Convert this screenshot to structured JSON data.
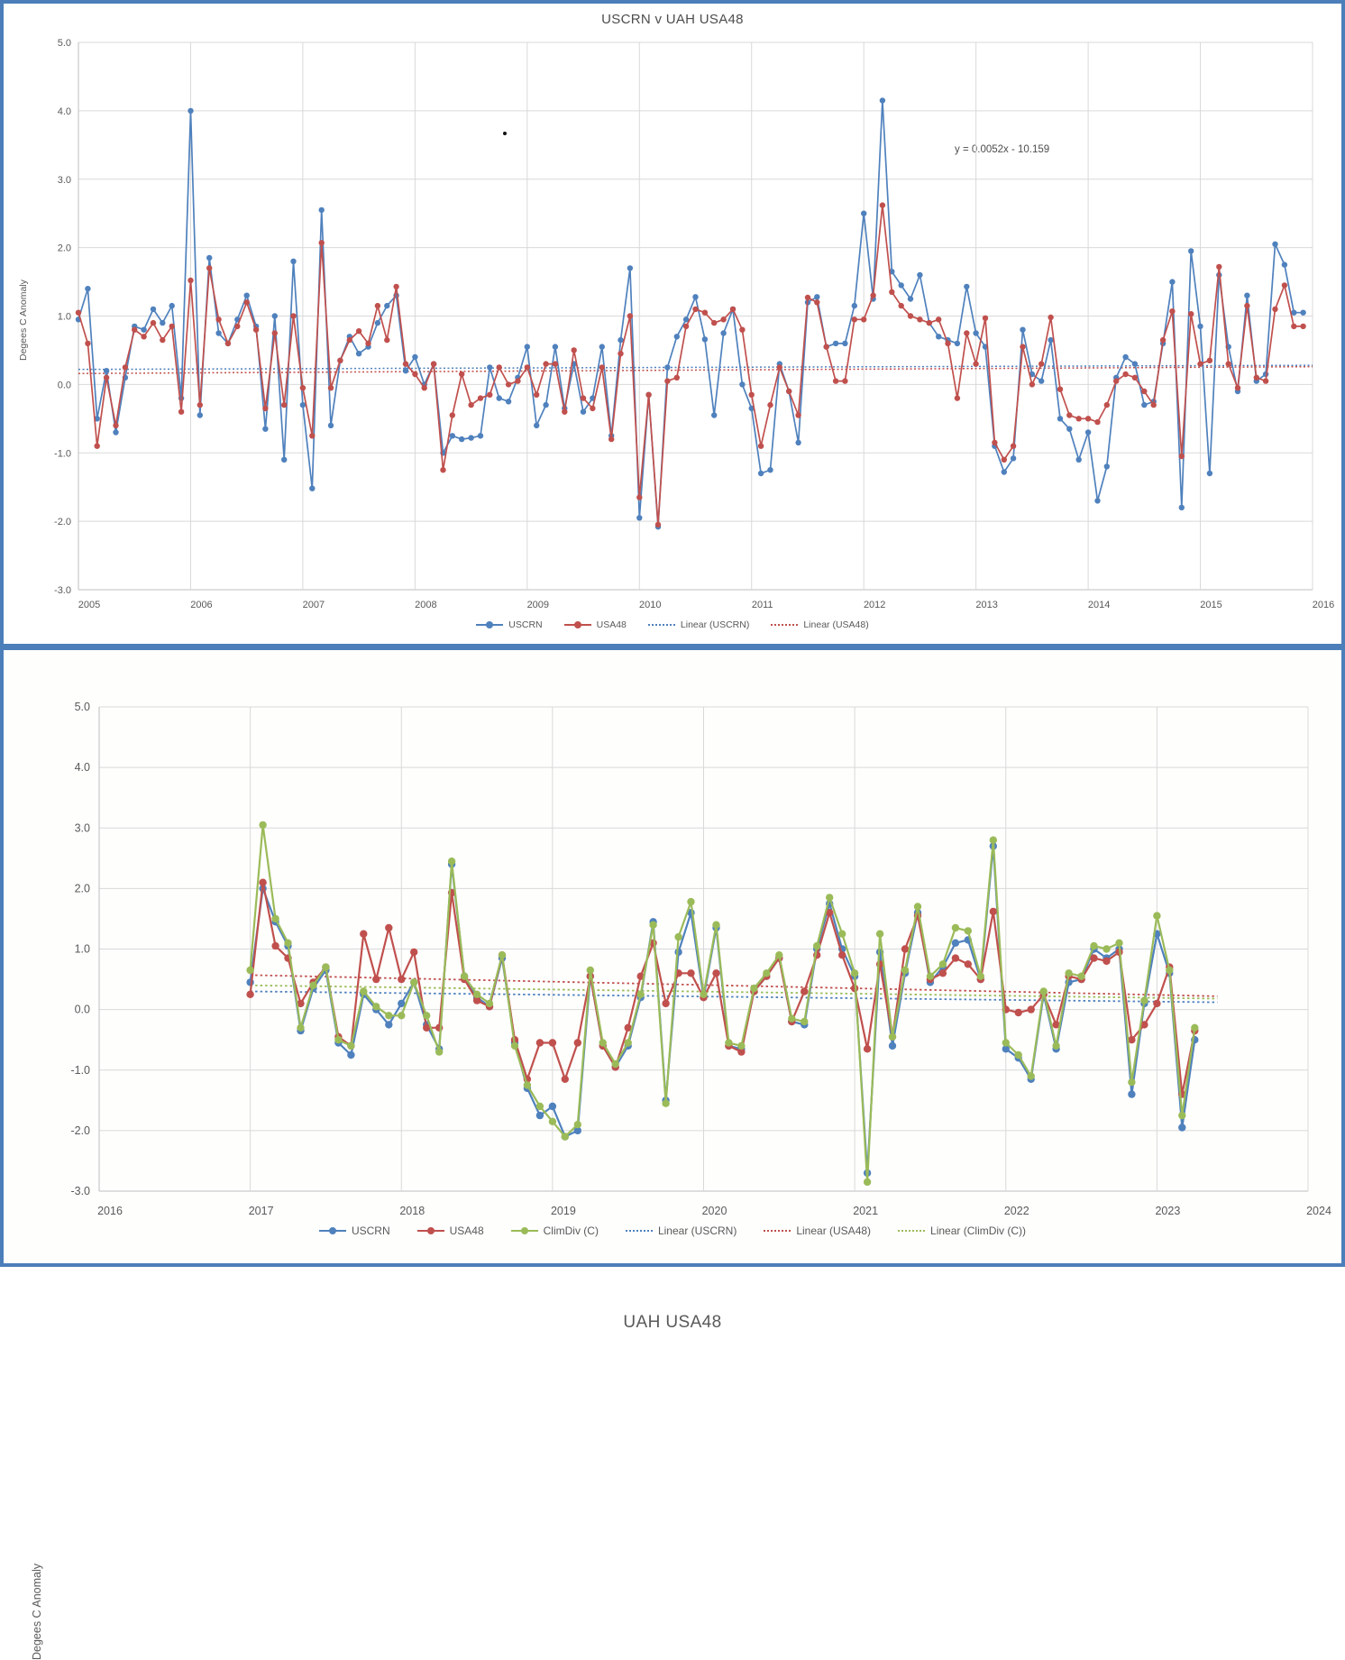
{
  "frame": {
    "border_color": "#4C7EBA"
  },
  "chart_data": [
    {
      "type": "line",
      "title": "USCRN v UAH USA48",
      "ylabel": "Degees  C Anomaly",
      "annotation": "y = 0.0052x - 10.159",
      "xlim": [
        2005,
        2016
      ],
      "ylim": [
        -3,
        5
      ],
      "x_ticks": [
        2005,
        2006,
        2007,
        2008,
        2009,
        2010,
        2011,
        2012,
        2013,
        2014,
        2015,
        2016
      ],
      "y_ticks": [
        5,
        4,
        3,
        2,
        1,
        0,
        -1,
        -2,
        -3
      ],
      "y_tick_labels": [
        "5.0",
        "4.0",
        "3.0",
        "2.0",
        "1.0",
        "0.0",
        "-1.0",
        "-2.0",
        "-3.0"
      ],
      "x_start": 2005.0,
      "points_per_year": 12,
      "grid": true,
      "legend_position": "bottom",
      "series": [
        {
          "name": "USCRN",
          "color": "#4F81BD",
          "values": [
            0.95,
            1.4,
            -0.5,
            0.2,
            -0.7,
            0.1,
            0.85,
            0.8,
            1.1,
            0.9,
            1.15,
            -0.2,
            4.0,
            -0.45,
            1.85,
            0.75,
            0.6,
            0.95,
            1.3,
            0.85,
            -0.65,
            1.0,
            -1.1,
            1.8,
            -0.3,
            -1.52,
            2.55,
            -0.6,
            0.35,
            0.7,
            0.45,
            0.55,
            0.9,
            1.15,
            1.3,
            0.2,
            0.4,
            0.0,
            0.3,
            -1.0,
            -0.75,
            -0.8,
            -0.78,
            -0.75,
            0.25,
            -0.2,
            -0.25,
            0.1,
            0.55,
            -0.6,
            -0.3,
            0.55,
            -0.35,
            0.3,
            -0.4,
            -0.2,
            0.55,
            -0.75,
            0.65,
            1.7,
            -1.95,
            -0.15,
            -2.08,
            0.25,
            0.7,
            0.95,
            1.28,
            0.66,
            -0.45,
            0.75,
            1.1,
            0.0,
            -0.35,
            -1.3,
            -1.25,
            0.3,
            -0.1,
            -0.85,
            1.2,
            1.28,
            0.55,
            0.6,
            0.6,
            1.15,
            2.5,
            1.25,
            4.15,
            1.65,
            1.45,
            1.25,
            1.6,
            0.9,
            0.7,
            0.65,
            0.6,
            1.43,
            0.75,
            0.55,
            -0.9,
            -1.28,
            -1.08,
            0.8,
            0.15,
            0.05,
            0.65,
            -0.5,
            -0.65,
            -1.1,
            -0.7,
            -1.7,
            -1.2,
            0.1,
            0.4,
            0.3,
            -0.3,
            -0.25,
            0.6,
            1.5,
            -1.8,
            1.95,
            0.85,
            -1.3,
            1.6,
            0.55,
            -0.1,
            1.3,
            0.05,
            0.15,
            2.05,
            1.75,
            1.05,
            1.05
          ]
        },
        {
          "name": "USA48",
          "color": "#C0504D",
          "values": [
            1.05,
            0.6,
            -0.9,
            0.1,
            -0.6,
            0.25,
            0.8,
            0.7,
            0.9,
            0.65,
            0.85,
            -0.4,
            1.52,
            -0.3,
            1.7,
            0.95,
            0.6,
            0.85,
            1.2,
            0.8,
            -0.35,
            0.75,
            -0.3,
            1.0,
            -0.05,
            -0.75,
            2.07,
            -0.05,
            0.35,
            0.65,
            0.78,
            0.6,
            1.15,
            0.65,
            1.43,
            0.3,
            0.15,
            -0.05,
            0.3,
            -1.25,
            -0.45,
            0.15,
            -0.3,
            -0.2,
            -0.15,
            0.25,
            0.0,
            0.05,
            0.25,
            -0.15,
            0.3,
            0.3,
            -0.4,
            0.5,
            -0.2,
            -0.35,
            0.25,
            -0.8,
            0.45,
            1.0,
            -1.65,
            -0.15,
            -2.05,
            0.05,
            0.1,
            0.85,
            1.1,
            1.05,
            0.9,
            0.95,
            1.1,
            0.8,
            -0.15,
            -0.9,
            -0.3,
            0.25,
            -0.1,
            -0.45,
            1.27,
            1.2,
            0.55,
            0.05,
            0.05,
            0.95,
            0.95,
            1.3,
            2.62,
            1.35,
            1.15,
            1.0,
            0.95,
            0.9,
            0.95,
            0.6,
            -0.2,
            0.75,
            0.3,
            0.97,
            -0.85,
            -1.1,
            -0.9,
            0.55,
            0.0,
            0.3,
            0.98,
            -0.07,
            -0.45,
            -0.5,
            -0.5,
            -0.55,
            -0.3,
            0.05,
            0.15,
            0.1,
            -0.1,
            -0.3,
            0.65,
            1.07,
            -1.05,
            1.03,
            0.3,
            0.35,
            1.72,
            0.3,
            -0.05,
            1.15,
            0.1,
            0.05,
            1.1,
            1.45,
            0.85,
            0.85
          ]
        }
      ],
      "trendlines": [
        {
          "name": "Linear (USCRN)",
          "color": "#4F81BD",
          "x0": 2005,
          "y0": 0.22,
          "x1": 2016,
          "y1": 0.28
        },
        {
          "name": "Linear (USA48)",
          "color": "#C0504D",
          "x0": 2005,
          "y0": 0.16,
          "x1": 2016,
          "y1": 0.26
        }
      ]
    },
    {
      "type": "line",
      "title": "UAH USA48",
      "ylabel": "Degees  C Anomaly",
      "annotation": "",
      "xlim": [
        2016,
        2024
      ],
      "ylim": [
        -3,
        5
      ],
      "x_ticks": [
        2016,
        2017,
        2018,
        2019,
        2020,
        2021,
        2022,
        2023,
        2024
      ],
      "y_ticks": [
        5,
        4,
        3,
        2,
        1,
        0,
        -1,
        -2,
        -3
      ],
      "y_tick_labels": [
        "5.0",
        "4.0",
        "3.0",
        "2.0",
        "1.0",
        "0.0",
        "-1.0",
        "-2.0",
        "-3.0"
      ],
      "x_start": 2017.0,
      "points_per_year": 12,
      "grid": true,
      "legend_position": "bottom",
      "series": [
        {
          "name": "USCRN",
          "color": "#4F81BD",
          "values": [
            0.45,
            2.0,
            1.45,
            1.05,
            -0.35,
            0.35,
            0.65,
            -0.55,
            -0.75,
            0.25,
            0.0,
            -0.25,
            0.1,
            0.45,
            -0.25,
            -0.65,
            2.4,
            0.55,
            0.2,
            0.05,
            0.85,
            -0.55,
            -1.3,
            -1.75,
            -1.6,
            -2.1,
            -2.0,
            0.55,
            -0.6,
            -0.95,
            -0.6,
            0.2,
            1.45,
            -1.5,
            0.95,
            1.6,
            0.2,
            1.35,
            -0.6,
            -0.65,
            0.3,
            0.55,
            0.85,
            -0.2,
            -0.25,
            1.0,
            1.75,
            1.0,
            0.55,
            -2.7,
            0.95,
            -0.6,
            0.6,
            1.6,
            0.45,
            0.7,
            1.1,
            1.15,
            0.5,
            2.7,
            -0.65,
            -0.8,
            -1.15,
            0.25,
            -0.65,
            0.45,
            0.5,
            1.0,
            0.85,
            1.0,
            -1.4,
            0.1,
            1.25,
            0.6,
            -1.95,
            -0.5
          ]
        },
        {
          "name": "USA48",
          "color": "#C0504D",
          "values": [
            0.25,
            2.1,
            1.05,
            0.85,
            0.1,
            0.45,
            0.7,
            -0.45,
            -0.6,
            1.25,
            0.5,
            1.35,
            0.5,
            0.95,
            -0.3,
            -0.3,
            1.93,
            0.5,
            0.15,
            0.05,
            0.9,
            -0.5,
            -1.15,
            -0.55,
            -0.55,
            -1.15,
            -0.55,
            0.55,
            -0.6,
            -0.95,
            -0.3,
            0.55,
            1.1,
            0.1,
            0.6,
            0.6,
            0.2,
            0.6,
            -0.6,
            -0.7,
            0.3,
            0.55,
            0.85,
            -0.2,
            0.3,
            0.9,
            1.6,
            0.9,
            0.35,
            -0.65,
            0.75,
            -0.45,
            1.0,
            1.55,
            0.5,
            0.6,
            0.85,
            0.75,
            0.5,
            1.62,
            0.0,
            -0.05,
            0.0,
            0.25,
            -0.25,
            0.55,
            0.5,
            0.85,
            0.8,
            0.95,
            -0.5,
            -0.25,
            0.1,
            0.7,
            -1.4,
            -0.35
          ]
        },
        {
          "name": "ClimDiv (C)",
          "color": "#9BBB59",
          "values": [
            0.65,
            3.05,
            1.5,
            1.1,
            -0.3,
            0.4,
            0.7,
            -0.5,
            -0.6,
            0.3,
            0.05,
            -0.1,
            -0.1,
            0.45,
            -0.1,
            -0.7,
            2.45,
            0.55,
            0.25,
            0.1,
            0.9,
            -0.6,
            -1.25,
            -1.6,
            -1.85,
            -2.1,
            -1.9,
            0.65,
            -0.55,
            -0.9,
            -0.55,
            0.25,
            1.4,
            -1.55,
            1.2,
            1.78,
            0.25,
            1.4,
            -0.55,
            -0.6,
            0.35,
            0.6,
            0.9,
            -0.15,
            -0.2,
            1.05,
            1.85,
            1.25,
            0.6,
            -2.85,
            1.25,
            -0.45,
            0.65,
            1.7,
            0.55,
            0.75,
            1.35,
            1.3,
            0.55,
            2.8,
            -0.55,
            -0.75,
            -1.1,
            0.3,
            -0.6,
            0.6,
            0.55,
            1.05,
            1.0,
            1.1,
            -1.2,
            0.15,
            1.55,
            0.65,
            -1.75,
            -0.3
          ]
        }
      ],
      "trendlines": [
        {
          "name": "Linear (USCRN)",
          "color": "#4F81BD",
          "x0": 2017,
          "y0": 0.3,
          "x1": 2023.4,
          "y1": 0.12
        },
        {
          "name": "Linear (USA48)",
          "color": "#C0504D",
          "x0": 2017,
          "y0": 0.57,
          "x1": 2023.4,
          "y1": 0.22
        },
        {
          "name": "Linear (ClimDiv (C))",
          "color": "#9BBB59",
          "x0": 2017,
          "y0": 0.4,
          "x1": 2023.4,
          "y1": 0.18
        }
      ]
    }
  ]
}
